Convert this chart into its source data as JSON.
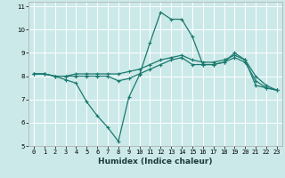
{
  "title": "",
  "xlabel": "Humidex (Indice chaleur)",
  "bg_color": "#cce9e9",
  "grid_color": "#ffffff",
  "line_color": "#1a7a6e",
  "xlim": [
    -0.5,
    23.5
  ],
  "ylim": [
    5,
    11.2
  ],
  "yticks": [
    5,
    6,
    7,
    8,
    9,
    10,
    11
  ],
  "xticks": [
    0,
    1,
    2,
    3,
    4,
    5,
    6,
    7,
    8,
    9,
    10,
    11,
    12,
    13,
    14,
    15,
    16,
    17,
    18,
    19,
    20,
    21,
    22,
    23
  ],
  "line1_x": [
    0,
    1,
    2,
    3,
    4,
    5,
    6,
    7,
    8,
    9,
    10,
    11,
    12,
    13,
    14,
    15,
    16,
    17,
    18,
    19,
    20,
    21,
    22,
    23
  ],
  "line1_y": [
    8.1,
    8.1,
    8.0,
    7.85,
    7.7,
    6.9,
    6.3,
    5.8,
    5.2,
    7.1,
    8.05,
    9.45,
    10.75,
    10.45,
    10.45,
    9.7,
    8.5,
    8.5,
    8.6,
    9.0,
    8.7,
    7.6,
    7.5,
    7.4
  ],
  "line2_x": [
    0,
    1,
    2,
    3,
    4,
    5,
    6,
    7,
    8,
    9,
    10,
    11,
    12,
    13,
    14,
    15,
    16,
    17,
    18,
    19,
    20,
    21,
    22,
    23
  ],
  "line2_y": [
    8.1,
    8.1,
    8.0,
    8.0,
    8.1,
    8.1,
    8.1,
    8.1,
    8.1,
    8.2,
    8.3,
    8.5,
    8.7,
    8.8,
    8.9,
    8.7,
    8.6,
    8.6,
    8.7,
    8.9,
    8.7,
    8.0,
    7.6,
    7.4
  ],
  "line3_x": [
    0,
    1,
    2,
    3,
    4,
    5,
    6,
    7,
    8,
    9,
    10,
    11,
    12,
    13,
    14,
    15,
    16,
    17,
    18,
    19,
    20,
    21,
    22,
    23
  ],
  "line3_y": [
    8.1,
    8.1,
    8.0,
    8.0,
    8.0,
    8.0,
    8.0,
    8.0,
    7.8,
    7.9,
    8.1,
    8.3,
    8.5,
    8.7,
    8.8,
    8.5,
    8.5,
    8.5,
    8.6,
    8.8,
    8.6,
    7.8,
    7.5,
    7.4
  ],
  "xlabel_fontsize": 6.5,
  "tick_fontsize": 5.0,
  "lw": 0.9,
  "ms": 2.5
}
